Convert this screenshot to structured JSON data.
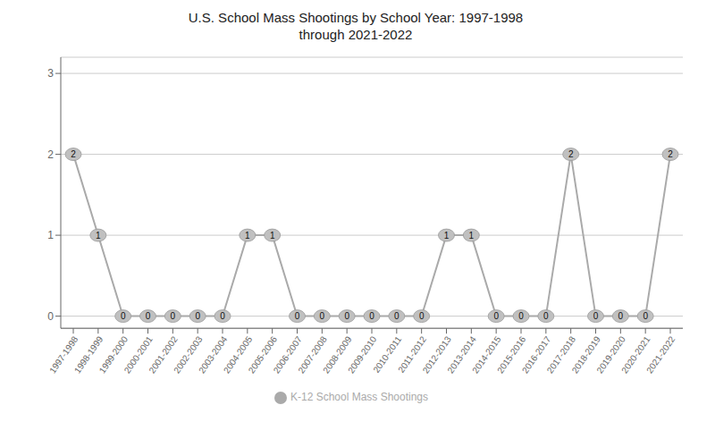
{
  "chart_data": {
    "type": "line",
    "title": "U.S. School Mass Shootings by School Year: 1997-1998\nthrough 2021-2022",
    "categories": [
      "1997-1998",
      "1998-1999",
      "1999-2000",
      "2000-2001",
      "2001-2002",
      "2002-2003",
      "2003-2004",
      "2004-2005",
      "2005-2006",
      "2006-2007",
      "2007-2008",
      "2008-2009",
      "2009-2010",
      "2010-2011",
      "2011-2012",
      "2012-2013",
      "2013-2014",
      "2014-2015",
      "2015-2016",
      "2016-2017",
      "2017-2018",
      "2018-2019",
      "2019-2020",
      "2020-2021",
      "2021-2022"
    ],
    "series": [
      {
        "name": "K-12 School Mass Shootings",
        "color": "#aaaaaa",
        "values": [
          2,
          1,
          0,
          0,
          0,
          0,
          0,
          1,
          1,
          0,
          0,
          0,
          0,
          0,
          0,
          1,
          1,
          0,
          0,
          0,
          2,
          0,
          0,
          0,
          2
        ]
      }
    ],
    "ylim": [
      -0.15,
      3.2
    ],
    "yticks": [
      0,
      1,
      2,
      3
    ],
    "grid": true,
    "legend": "bottom",
    "data_labels": true,
    "marker": "circle"
  }
}
